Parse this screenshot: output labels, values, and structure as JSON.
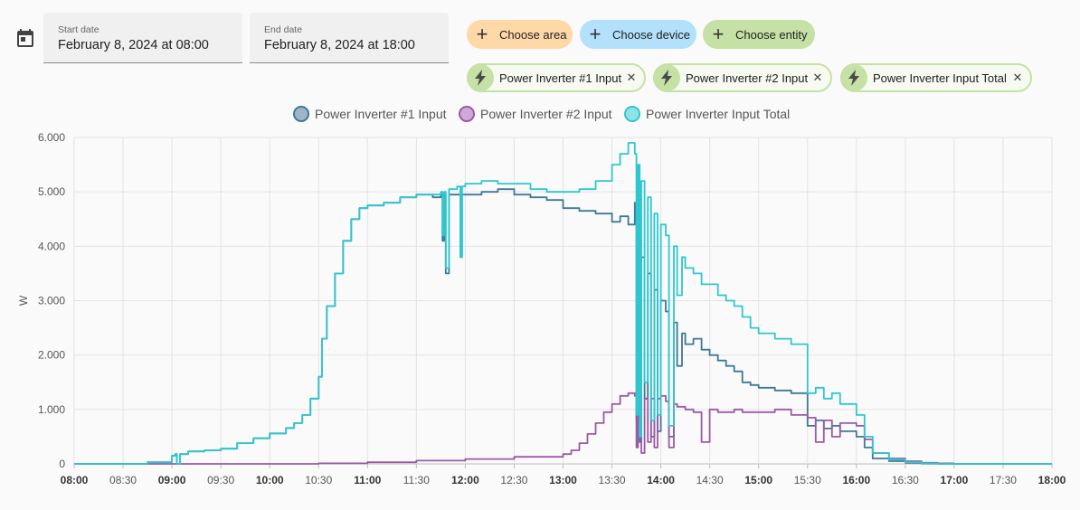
{
  "date_picker": {
    "start_label": "Start date",
    "start_value": "February 8, 2024 at 08:00",
    "end_label": "End date",
    "end_value": "February 8, 2024 at 18:00"
  },
  "targets": {
    "area_label": "Choose area",
    "device_label": "Choose device",
    "entity_label": "Choose entity"
  },
  "selected_entities": [
    {
      "label": "Power Inverter #1 Input"
    },
    {
      "label": "Power Inverter #2 Input"
    },
    {
      "label": "Power Inverter Input Total"
    }
  ],
  "colors": {
    "area_chip": "#ffd8a8",
    "device_chip": "#b3e0fb",
    "entity_chip": "#c5e1a5",
    "series1": "#3f7896",
    "series2": "#9b59a6",
    "series3": "#2ec7cf"
  },
  "chart_data": {
    "type": "line",
    "title": "",
    "xlabel": "",
    "ylabel": "W",
    "ylim": [
      0,
      6000
    ],
    "xlim": [
      "08:00",
      "18:00"
    ],
    "grid": true,
    "legend": "top-center",
    "y_ticks": [
      "0",
      "1.000",
      "2.000",
      "3.000",
      "4.000",
      "5.000",
      "6.000"
    ],
    "x_ticks": [
      {
        "label": "08:00",
        "bold": true
      },
      {
        "label": "08:30",
        "bold": false
      },
      {
        "label": "09:00",
        "bold": true
      },
      {
        "label": "09:30",
        "bold": false
      },
      {
        "label": "10:00",
        "bold": true
      },
      {
        "label": "10:30",
        "bold": false
      },
      {
        "label": "11:00",
        "bold": true
      },
      {
        "label": "11:30",
        "bold": false
      },
      {
        "label": "12:00",
        "bold": true
      },
      {
        "label": "12:30",
        "bold": false
      },
      {
        "label": "13:00",
        "bold": true
      },
      {
        "label": "13:30",
        "bold": false
      },
      {
        "label": "14:00",
        "bold": true
      },
      {
        "label": "14:30",
        "bold": false
      },
      {
        "label": "15:00",
        "bold": true
      },
      {
        "label": "15:30",
        "bold": false
      },
      {
        "label": "16:00",
        "bold": true
      },
      {
        "label": "16:30",
        "bold": false
      },
      {
        "label": "17:00",
        "bold": true
      },
      {
        "label": "17:30",
        "bold": false
      },
      {
        "label": "18:00",
        "bold": true
      }
    ],
    "series": [
      {
        "name": "Power Inverter #1 Input",
        "color": "#3f7896",
        "x": [
          "08:00",
          "08:40",
          "08:45",
          "09:00",
          "09:02",
          "09:03",
          "09:05",
          "09:10",
          "09:20",
          "09:30",
          "09:40",
          "09:50",
          "10:00",
          "10:10",
          "10:15",
          "10:20",
          "10:25",
          "10:30",
          "10:32",
          "10:35",
          "10:40",
          "10:45",
          "10:50",
          "10:55",
          "11:00",
          "11:10",
          "11:20",
          "11:30",
          "11:40",
          "11:45",
          "11:46",
          "11:47",
          "11:48",
          "11:50",
          "11:55",
          "11:57",
          "11:58",
          "12:00",
          "12:10",
          "12:20",
          "12:30",
          "12:40",
          "12:50",
          "13:00",
          "13:10",
          "13:20",
          "13:30",
          "13:35",
          "13:40",
          "13:44",
          "13:45",
          "13:46",
          "13:47",
          "13:48",
          "13:50",
          "13:52",
          "13:54",
          "13:56",
          "13:58",
          "14:00",
          "14:03",
          "14:05",
          "14:08",
          "14:10",
          "14:13",
          "14:15",
          "14:20",
          "14:25",
          "14:30",
          "14:35",
          "14:40",
          "14:45",
          "14:50",
          "14:55",
          "15:00",
          "15:10",
          "15:20",
          "15:30",
          "15:35",
          "15:40",
          "15:45",
          "15:50",
          "16:00",
          "16:05",
          "16:10",
          "16:20",
          "16:30",
          "16:40",
          "16:50",
          "17:00",
          "17:10",
          "18:00"
        ],
        "values": [
          0,
          0,
          30,
          150,
          180,
          0,
          180,
          230,
          250,
          280,
          380,
          470,
          560,
          660,
          750,
          900,
          1200,
          1600,
          2300,
          2900,
          3500,
          4100,
          4500,
          4700,
          4750,
          4800,
          4900,
          4950,
          4900,
          4950,
          4100,
          4950,
          3500,
          4950,
          4950,
          3800,
          4950,
          4950,
          5000,
          5050,
          4950,
          4900,
          4850,
          4700,
          4650,
          4600,
          4450,
          4550,
          4400,
          4800,
          800,
          4300,
          400,
          3800,
          1200,
          3500,
          500,
          3200,
          600,
          3000,
          2800,
          500,
          2600,
          1800,
          2400,
          2200,
          2300,
          2100,
          2000,
          1900,
          1800,
          1700,
          1500,
          1450,
          1400,
          1350,
          1300,
          700,
          800,
          650,
          700,
          600,
          500,
          300,
          100,
          50,
          20,
          5,
          0,
          0,
          0,
          0
        ]
      },
      {
        "name": "Power Inverter #2 Input",
        "color": "#9b59a6",
        "x": [
          "08:00",
          "09:00",
          "10:00",
          "10:30",
          "11:00",
          "11:30",
          "12:00",
          "12:30",
          "13:00",
          "13:05",
          "13:10",
          "13:15",
          "13:20",
          "13:25",
          "13:30",
          "13:35",
          "13:40",
          "13:44",
          "13:45",
          "13:46",
          "13:48",
          "13:50",
          "13:52",
          "13:54",
          "13:56",
          "13:58",
          "14:00",
          "14:03",
          "14:05",
          "14:08",
          "14:10",
          "14:15",
          "14:20",
          "14:25",
          "14:30",
          "14:35",
          "14:40",
          "14:45",
          "14:50",
          "15:00",
          "15:10",
          "15:20",
          "15:30",
          "15:35",
          "15:40",
          "15:45",
          "15:50",
          "16:00",
          "16:05",
          "16:10",
          "16:20",
          "16:30",
          "16:40",
          "16:50",
          "17:00",
          "18:00"
        ],
        "values": [
          0,
          0,
          0,
          10,
          30,
          60,
          90,
          130,
          180,
          250,
          380,
          550,
          750,
          950,
          1100,
          1250,
          1300,
          1250,
          300,
          1250,
          200,
          1200,
          400,
          1200,
          300,
          1200,
          1250,
          1150,
          300,
          1100,
          1050,
          1000,
          950,
          400,
          1000,
          950,
          950,
          1000,
          950,
          950,
          1000,
          900,
          850,
          400,
          800,
          500,
          750,
          700,
          450,
          200,
          100,
          50,
          20,
          10,
          0,
          0
        ]
      },
      {
        "name": "Power Inverter Input Total",
        "color": "#2ec7cf",
        "x": [
          "08:00",
          "08:40",
          "08:45",
          "09:00",
          "09:02",
          "09:03",
          "09:05",
          "09:10",
          "09:20",
          "09:30",
          "09:40",
          "09:50",
          "10:00",
          "10:10",
          "10:15",
          "10:20",
          "10:25",
          "10:30",
          "10:32",
          "10:35",
          "10:40",
          "10:45",
          "10:50",
          "10:55",
          "11:00",
          "11:10",
          "11:20",
          "11:30",
          "11:40",
          "11:45",
          "11:46",
          "11:47",
          "11:48",
          "11:50",
          "11:55",
          "11:57",
          "11:58",
          "12:00",
          "12:10",
          "12:20",
          "12:30",
          "12:40",
          "12:50",
          "13:00",
          "13:10",
          "13:20",
          "13:30",
          "13:35",
          "13:40",
          "13:44",
          "13:45",
          "13:46",
          "13:47",
          "13:48",
          "13:50",
          "13:52",
          "13:54",
          "13:56",
          "13:58",
          "14:00",
          "14:03",
          "14:05",
          "14:08",
          "14:10",
          "14:13",
          "14:15",
          "14:20",
          "14:25",
          "14:30",
          "14:35",
          "14:40",
          "14:45",
          "14:50",
          "14:55",
          "15:00",
          "15:10",
          "15:20",
          "15:30",
          "15:35",
          "15:40",
          "15:45",
          "15:50",
          "16:00",
          "16:05",
          "16:10",
          "16:20",
          "16:30",
          "16:40",
          "16:50",
          "17:00",
          "17:10",
          "18:00"
        ],
        "values": [
          0,
          0,
          30,
          150,
          180,
          0,
          180,
          230,
          250,
          280,
          380,
          470,
          560,
          660,
          750,
          900,
          1200,
          1600,
          2300,
          2900,
          3500,
          4100,
          4500,
          4700,
          4750,
          4800,
          4900,
          4950,
          4950,
          5000,
          4200,
          5000,
          3600,
          5050,
          5100,
          3800,
          5100,
          5150,
          5200,
          5150,
          5150,
          5050,
          5000,
          5000,
          5050,
          5200,
          5500,
          5700,
          5900,
          5700,
          900,
          5500,
          500,
          5200,
          1500,
          4900,
          800,
          4600,
          900,
          4400,
          4200,
          700,
          4000,
          3100,
          3800,
          3600,
          3500,
          3300,
          3300,
          3100,
          3000,
          2900,
          2700,
          2500,
          2400,
          2300,
          2200,
          1300,
          1400,
          1200,
          1300,
          1100,
          900,
          500,
          200,
          80,
          30,
          10,
          0,
          0,
          0,
          0
        ]
      }
    ]
  }
}
